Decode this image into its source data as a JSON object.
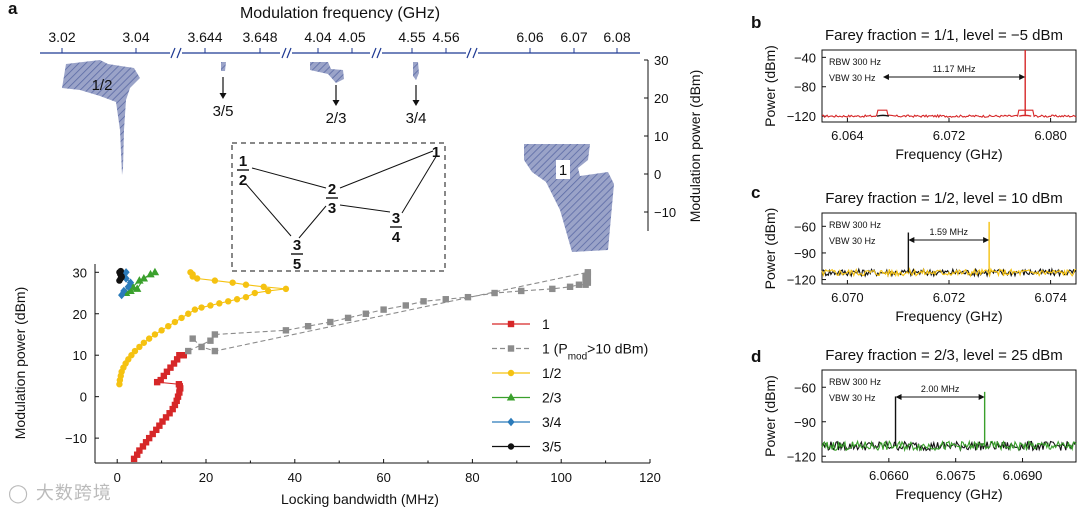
{
  "colors": {
    "red": "#d62728",
    "gray": "#8c8c8c",
    "yellow": "#f5c211",
    "green": "#3aa02c",
    "blue": "#2b7bba",
    "black": "#111111",
    "navy": "#1f3a93",
    "hatch": "#7a86b8"
  },
  "chart_data": [
    {
      "id": "a",
      "panel_label": "a",
      "type": "scatter",
      "xlabel": "Locking bandwidth (MHz)",
      "ylabel": "Modulation power (dBm)",
      "xlim": [
        -5,
        120
      ],
      "ylim": [
        -16,
        32
      ],
      "xticks": [
        "0",
        "20",
        "40",
        "60",
        "80",
        "100",
        "120"
      ],
      "yticks": [
        "-10",
        "0",
        "10",
        "20",
        "30"
      ],
      "legend": [
        {
          "label": "1",
          "series": 0
        },
        {
          "label": "1 (P",
          "sub": "mod",
          "tail": ">10 dBm)",
          "series": 1
        },
        {
          "label": "1/2",
          "series": 2
        },
        {
          "label": "2/3",
          "series": 3
        },
        {
          "label": "3/4",
          "series": 4
        },
        {
          "label": "3/5",
          "series": 5
        }
      ],
      "series": [
        {
          "name": "1",
          "marker": "square",
          "color": "#d62728",
          "dash": false,
          "x": [
            3.8,
            4.5,
            5,
            5.8,
            6.5,
            7.2,
            8,
            8.8,
            9.5,
            10.2,
            11,
            11.8,
            12.5,
            13,
            13.4,
            13.7,
            14,
            14.2,
            14.1,
            13.9,
            9,
            9.8,
            10.5,
            11.2,
            12,
            12.8,
            13.5,
            14,
            14.4,
            14.8,
            15
          ],
          "y": [
            -15,
            -14,
            -13,
            -12,
            -11,
            -10,
            -9,
            -8,
            -7,
            -6,
            -5,
            -4,
            -3,
            -2,
            -1,
            0,
            1,
            2,
            2.5,
            3,
            3.5,
            4,
            5,
            6,
            7,
            8,
            9,
            10,
            10,
            10,
            10
          ]
        },
        {
          "name": "1 (Pmod>10 dBm)",
          "marker": "square",
          "color": "#8c8c8c",
          "dash": true,
          "x": [
            16,
            21,
            22,
            38,
            43,
            48,
            52,
            56,
            60,
            65,
            69,
            74,
            79,
            85,
            91,
            98,
            102,
            104,
            105.5,
            106,
            106,
            105.5,
            105.5,
            106,
            106,
            22,
            19,
            17
          ],
          "y": [
            11,
            13.5,
            15,
            16,
            17,
            18,
            19,
            20,
            21,
            22,
            23,
            23.5,
            24,
            25,
            25.5,
            26,
            26.5,
            27,
            27,
            27.5,
            28,
            28.5,
            29,
            29.5,
            30,
            11,
            12,
            14
          ]
        },
        {
          "name": "1/2",
          "marker": "circle",
          "color": "#f5c211",
          "dash": false,
          "x": [
            0.5,
            0.6,
            0.8,
            1.0,
            1.4,
            1.9,
            2.5,
            3.2,
            4.0,
            5.0,
            6.0,
            7.2,
            8.5,
            10,
            11.5,
            13,
            14.5,
            16,
            17.5,
            19,
            21,
            23,
            25,
            27,
            29,
            31,
            34,
            38,
            33,
            29,
            26,
            22,
            18,
            17,
            17,
            16.5
          ],
          "y": [
            3,
            4,
            5,
            6,
            7,
            8,
            9,
            10,
            11,
            12,
            13,
            14,
            15,
            16,
            17,
            18,
            19,
            20,
            21,
            21.5,
            22,
            22.5,
            23,
            23.5,
            24,
            25,
            25.5,
            26,
            26.5,
            27,
            27.5,
            28,
            28.5,
            29,
            29.5,
            30
          ]
        },
        {
          "name": "2/3",
          "marker": "triangle",
          "color": "#3aa02c",
          "dash": false,
          "x": [
            2,
            3.5,
            5,
            7.5,
            8.5,
            6,
            4.5,
            3
          ],
          "y": [
            25,
            26.5,
            28,
            29.5,
            30,
            28.5,
            26,
            25.5
          ]
        },
        {
          "name": "3/4",
          "marker": "diamond",
          "color": "#2b7bba",
          "dash": false,
          "x": [
            1,
            1.5,
            2.5,
            3,
            2,
            1.5,
            2
          ],
          "y": [
            24.5,
            25.5,
            26.5,
            27.5,
            28.5,
            29.5,
            30
          ]
        },
        {
          "name": "3/5",
          "marker": "circle",
          "color": "#111111",
          "dash": false,
          "x": [
            0.5,
            0.8,
            1,
            0.7,
            0.5,
            0.8,
            1
          ],
          "y": [
            28,
            28.5,
            29,
            29.5,
            30,
            30.3,
            28.8
          ]
        }
      ]
    },
    {
      "id": "a-inset",
      "type": "area",
      "title": "Modulation frequency (GHz)",
      "ylabel": "Modulation power (dBm)",
      "ylim": [
        -15,
        30
      ],
      "yticks": [
        "-10",
        "0",
        "10",
        "20",
        "30"
      ],
      "segments": [
        {
          "ticks": [
            "3.02",
            "3.04"
          ],
          "region_label": "1/2",
          "region_color": "#f5c211"
        },
        {
          "ticks": [
            "3.644",
            "3.648"
          ],
          "region_label": "3/5",
          "region_color": "#111111"
        },
        {
          "ticks": [
            "4.04",
            "4.05"
          ],
          "region_label": "2/3",
          "region_color": "#3aa02c"
        },
        {
          "ticks": [
            "4.55",
            "4.56"
          ],
          "region_label": "3/4",
          "region_color": "#2b7bba"
        },
        {
          "ticks": [
            "6.06",
            "6.07",
            "6.08"
          ],
          "region_label": "1",
          "region_color": "#d62728"
        }
      ],
      "farey_tree": [
        {
          "num": "1",
          "den": "2"
        },
        {
          "num": "",
          "den": "1"
        },
        {
          "num": "2",
          "den": "3"
        },
        {
          "num": "3",
          "den": "4"
        },
        {
          "num": "3",
          "den": "5"
        }
      ]
    },
    {
      "id": "b",
      "panel_label": "b",
      "type": "line",
      "title": "Farey fraction = 1/1, level = −5 dBm",
      "xlabel": "Frequency (GHz)",
      "ylabel": "Power (dBm)",
      "xlim": [
        6.062,
        6.082
      ],
      "ylim": [
        -128,
        -30
      ],
      "xticks": [
        "6.064",
        "6.072",
        "6.080"
      ],
      "yticks": [
        "-40",
        "-80",
        "-120"
      ],
      "xtick_values": [
        6.064,
        6.072,
        6.08
      ],
      "ytick_values": [
        -40,
        -80,
        -120
      ],
      "noise_floor": -120,
      "annotations": {
        "rbw": "RBW 300 Hz",
        "vbw": "VBW 30 Hz",
        "spacing": "11.17 MHz"
      },
      "peaks": [
        {
          "x": 6.0668,
          "peak": -112,
          "color": "#111111",
          "width": 0.0004
        },
        {
          "x": 6.078,
          "peak": -30,
          "color": "#d62728",
          "width": 0.00015,
          "sideband": -112
        }
      ],
      "noise_colors": [
        "#d62728"
      ]
    },
    {
      "id": "c",
      "panel_label": "c",
      "type": "line",
      "title": "Farey fraction = 1/2, level = 10 dBm",
      "xlabel": "Frequency (GHz)",
      "ylabel": "Power (dBm)",
      "xlim": [
        6.0695,
        6.0745
      ],
      "ylim": [
        -125,
        -45
      ],
      "xticks": [
        "6.070",
        "6.072",
        "6.074"
      ],
      "yticks": [
        "-60",
        "-90",
        "-120"
      ],
      "xtick_values": [
        6.07,
        6.072,
        6.074
      ],
      "ytick_values": [
        -60,
        -90,
        -120
      ],
      "noise_floor": -112,
      "annotations": {
        "rbw": "RBW 300 Hz",
        "vbw": "VBW 30 Hz",
        "spacing": "1.59 MHz"
      },
      "peaks": [
        {
          "x": 6.0712,
          "peak": -67,
          "color": "#111111",
          "width": 2e-05
        },
        {
          "x": 6.07279,
          "peak": -55,
          "color": "#f5c211",
          "width": 2e-05
        }
      ],
      "noise_colors": [
        "#111111",
        "#f5c211"
      ]
    },
    {
      "id": "d",
      "panel_label": "d",
      "type": "line",
      "title": "Farey fraction = 2/3, level = 25 dBm",
      "xlabel": "Frequency (GHz)",
      "ylabel": "Power (dBm)",
      "xlim": [
        6.0645,
        6.0702
      ],
      "ylim": [
        -125,
        -45
      ],
      "xticks": [
        "6.0660",
        "6.0675",
        "6.0690"
      ],
      "yticks": [
        "-60",
        "-90",
        "-120"
      ],
      "xtick_values": [
        6.066,
        6.0675,
        6.069
      ],
      "ytick_values": [
        -60,
        -90,
        -120
      ],
      "noise_floor": -111,
      "annotations": {
        "rbw": "RBW 300 Hz",
        "vbw": "VBW 30 Hz",
        "spacing": "2.00 MHz"
      },
      "peaks": [
        {
          "x": 6.06615,
          "peak": -68,
          "color": "#111111",
          "width": 2e-05
        },
        {
          "x": 6.06815,
          "peak": -64,
          "color": "#3aa02c",
          "width": 2e-05
        }
      ],
      "noise_colors": [
        "#111111",
        "#3aa02c"
      ]
    }
  ],
  "watermark": "大数跨境"
}
